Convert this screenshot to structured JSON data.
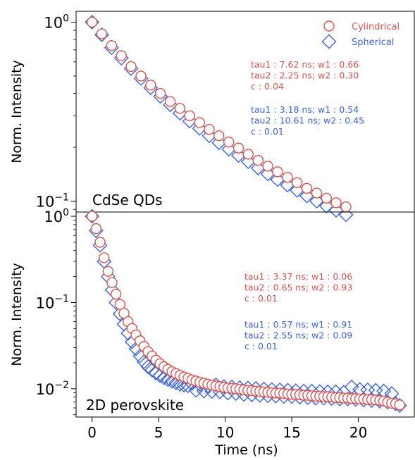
{
  "colors": {
    "cylindrical": "#d9534f",
    "spherical": "#3b63e0",
    "axis": "#000000"
  },
  "shared": {
    "xlabel": "Time (ns)",
    "xlim": [
      -1.2,
      24.2
    ],
    "xticks": [
      0,
      5,
      10,
      15,
      20
    ]
  },
  "chart_data": [
    {
      "type": "scatter",
      "yscale": "log",
      "ylabel": "Norm. Intensity",
      "ylim": [
        0.087,
        1.15
      ],
      "yticks": [
        {
          "value": 1,
          "label": "10^0"
        },
        {
          "value": 0.1,
          "label": "10^-1"
        }
      ],
      "panel_label": "CdSe QDs",
      "legend": {
        "position": "top-right",
        "entries": [
          "Cylindrical",
          "Spherical"
        ]
      },
      "annotations": [
        {
          "series": "Cylindrical",
          "lines": [
            "tau1 : 7.62 ns; w1 : 0.66",
            "tau2 : 2.25 ns; w2 : 0.30",
            "c : 0.04"
          ]
        },
        {
          "series": "Spherical",
          "lines": [
            "tau1 : 3.18 ns; w1 : 0.54",
            "tau2 : 10.61 ns; w2 : 0.45",
            "c : 0.01"
          ]
        }
      ],
      "series": [
        {
          "name": "Cylindrical",
          "marker": "circle",
          "x": [
            0,
            0.73,
            1.47,
            2.2,
            2.93,
            3.67,
            4.4,
            5.13,
            5.87,
            6.6,
            7.33,
            8.07,
            8.8,
            9.53,
            10.27,
            11.0,
            11.73,
            12.47,
            13.2,
            13.93,
            14.67,
            15.4,
            16.13,
            16.87,
            17.6,
            18.33,
            19.07
          ],
          "y": [
            1.0,
            0.86,
            0.74,
            0.65,
            0.565,
            0.5,
            0.445,
            0.4,
            0.36,
            0.33,
            0.3,
            0.275,
            0.252,
            0.232,
            0.214,
            0.198,
            0.183,
            0.169,
            0.157,
            0.146,
            0.136,
            0.127,
            0.118,
            0.111,
            0.104,
            0.098,
            0.093
          ]
        },
        {
          "name": "Spherical",
          "marker": "diamond",
          "x": [
            0,
            0.73,
            1.47,
            2.2,
            2.93,
            3.67,
            4.4,
            5.13,
            5.87,
            6.6,
            7.33,
            8.07,
            8.8,
            9.53,
            10.27,
            11.0,
            11.73,
            12.47,
            13.2,
            13.93,
            14.67,
            15.4,
            16.13,
            16.87,
            17.6,
            18.33,
            19.07
          ],
          "y": [
            1.0,
            0.85,
            0.72,
            0.63,
            0.55,
            0.485,
            0.43,
            0.385,
            0.345,
            0.31,
            0.28,
            0.255,
            0.232,
            0.212,
            0.195,
            0.18,
            0.166,
            0.153,
            0.142,
            0.132,
            0.123,
            0.115,
            0.107,
            0.1,
            0.094,
            0.089,
            0.084
          ]
        }
      ]
    },
    {
      "type": "scatter",
      "yscale": "log",
      "ylabel": "Norm. Intensity",
      "ylim": [
        0.0047,
        1.12
      ],
      "yticks": [
        {
          "value": 1,
          "label": "10^0"
        },
        {
          "value": 0.1,
          "label": "10^-1"
        },
        {
          "value": 0.01,
          "label": "10^-2"
        }
      ],
      "panel_label": "2D perovskite",
      "annotations": [
        {
          "series": "Cylindrical",
          "lines": [
            "tau1 : 3.37 ns; w1 : 0.06",
            "tau2 : 0.65 ns; w2 : 0.93",
            "c : 0.01"
          ]
        },
        {
          "series": "Spherical",
          "lines": [
            "tau1 : 0.57 ns; w1 : 0.91",
            "tau2 : 2.55 ns; w2 : 0.09",
            "c : 0.01"
          ]
        }
      ],
      "series": [
        {
          "name": "Cylindrical",
          "marker": "circle",
          "x": [
            0,
            0.3,
            0.6,
            0.9,
            1.2,
            1.5,
            1.8,
            2.1,
            2.4,
            2.7,
            3.0,
            3.3,
            3.6,
            3.9,
            4.2,
            4.5,
            4.8,
            5.1,
            5.4,
            5.7,
            6.0,
            6.3,
            6.6,
            6.9,
            7.2,
            7.5,
            7.8,
            8.1,
            8.4,
            8.7,
            9.0,
            9.3,
            9.6,
            9.9,
            10.2,
            10.5,
            10.8,
            11.1,
            11.4,
            11.7,
            12.0,
            12.3,
            12.6,
            12.9,
            13.2,
            13.5,
            13.8,
            14.1,
            14.4,
            14.7,
            15.0,
            15.3,
            15.6,
            15.9,
            16.2,
            16.5,
            16.8,
            17.1,
            17.4,
            17.7,
            18.0,
            18.3,
            18.6,
            18.9,
            19.2,
            19.5,
            19.8,
            20.1,
            20.4,
            20.7,
            21.0,
            21.3,
            21.6,
            21.9,
            22.2,
            22.5,
            22.8,
            23.1
          ],
          "y": [
            1.0,
            0.72,
            0.5,
            0.33,
            0.23,
            0.17,
            0.125,
            0.095,
            0.075,
            0.06,
            0.05,
            0.042,
            0.036,
            0.031,
            0.027,
            0.024,
            0.0215,
            0.0195,
            0.018,
            0.0168,
            0.0158,
            0.015,
            0.0143,
            0.0137,
            0.0132,
            0.0127,
            0.0123,
            0.0119,
            0.0116,
            0.0113,
            0.011,
            0.0108,
            0.0106,
            0.0104,
            0.0102,
            0.0101,
            0.01,
            0.0099,
            0.0097,
            0.0096,
            0.0095,
            0.0094,
            0.0093,
            0.0092,
            0.0091,
            0.009,
            0.0089,
            0.0089,
            0.0088,
            0.0087,
            0.0086,
            0.0086,
            0.0085,
            0.0084,
            0.0084,
            0.0083,
            0.0082,
            0.0082,
            0.0081,
            0.0081,
            0.008,
            0.0079,
            0.0079,
            0.0078,
            0.0078,
            0.0077,
            0.0077,
            0.0076,
            0.0076,
            0.0075,
            0.0075,
            0.0074,
            0.0073,
            0.0072,
            0.007,
            0.0068,
            0.0067,
            0.0065
          ]
        },
        {
          "name": "Spherical",
          "marker": "diamond",
          "x": [
            0,
            0.3,
            0.6,
            0.9,
            1.2,
            1.5,
            1.8,
            2.1,
            2.4,
            2.7,
            3.0,
            3.3,
            3.6,
            3.9,
            4.2,
            4.5,
            4.8,
            5.1,
            5.4,
            5.7,
            6.0,
            6.3,
            6.6,
            6.9,
            7.2,
            7.5,
            7.8,
            8.1,
            8.4,
            8.7,
            9.0,
            9.3,
            9.6,
            9.9,
            10.2,
            10.5,
            10.8,
            11.1,
            11.4,
            11.7,
            12.0,
            12.3,
            12.6,
            12.9,
            13.2,
            13.5,
            13.8,
            14.1,
            14.4,
            14.7,
            15.0,
            15.3,
            15.6,
            15.9,
            16.2,
            16.5,
            16.8,
            17.1,
            17.4,
            17.7,
            18.0,
            18.3,
            18.6,
            18.9,
            19.2,
            19.5,
            19.8,
            20.1,
            20.4,
            20.7,
            21.0,
            21.3,
            21.6,
            21.9,
            22.2,
            22.5,
            22.8,
            23.1
          ],
          "y": [
            1.0,
            0.68,
            0.46,
            0.3,
            0.2,
            0.14,
            0.1,
            0.074,
            0.056,
            0.044,
            0.035,
            0.029,
            0.024,
            0.0205,
            0.018,
            0.0165,
            0.0152,
            0.0142,
            0.0134,
            0.0128,
            0.0122,
            0.0117,
            0.0113,
            0.011,
            0.0108,
            0.0115,
            0.0096,
            0.0112,
            0.0094,
            0.0108,
            0.0093,
            0.0111,
            0.0092,
            0.0106,
            0.0089,
            0.0105,
            0.0088,
            0.0103,
            0.0086,
            0.0102,
            0.0085,
            0.0101,
            0.0084,
            0.0099,
            0.0083,
            0.0098,
            0.0082,
            0.0097,
            0.0081,
            0.0096,
            0.0081,
            0.0095,
            0.008,
            0.0094,
            0.0079,
            0.0094,
            0.0078,
            0.0093,
            0.0078,
            0.0092,
            0.0077,
            0.0092,
            0.0076,
            0.0091,
            0.0076,
            0.0105,
            0.0075,
            0.0098,
            0.0074,
            0.0097,
            0.0073,
            0.0096,
            0.0072,
            0.0094,
            0.007,
            0.0088,
            0.0067,
            0.0064
          ]
        }
      ]
    }
  ]
}
